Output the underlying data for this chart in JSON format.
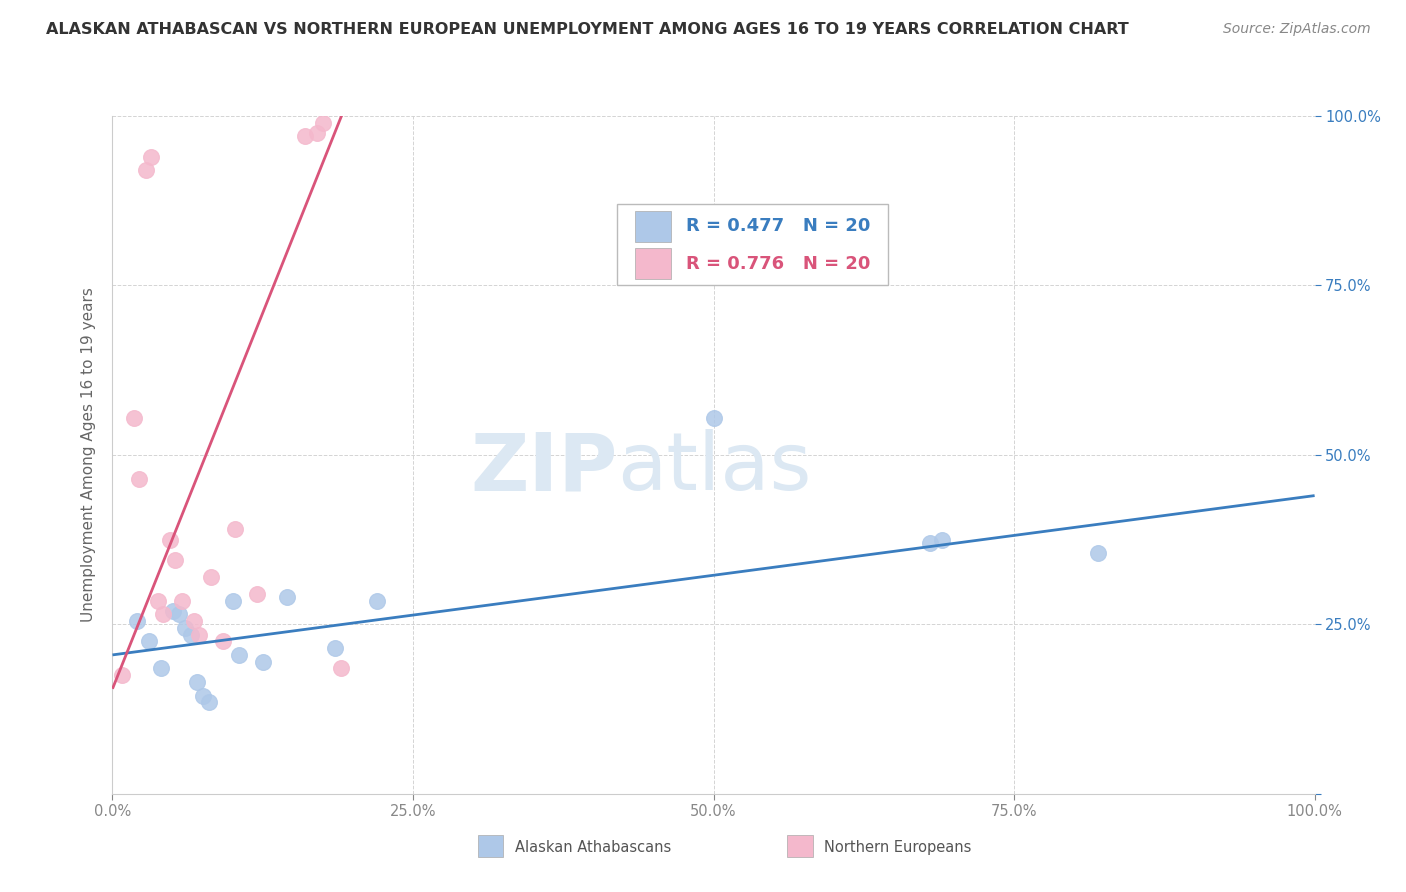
{
  "title": "ALASKAN ATHABASCAN VS NORTHERN EUROPEAN UNEMPLOYMENT AMONG AGES 16 TO 19 YEARS CORRELATION CHART",
  "source": "Source: ZipAtlas.com",
  "ylabel": "Unemployment Among Ages 16 to 19 years",
  "xlim": [
    0,
    1.0
  ],
  "ylim": [
    0,
    1.0
  ],
  "xticks": [
    0.0,
    0.25,
    0.5,
    0.75,
    1.0
  ],
  "yticks": [
    0.0,
    0.25,
    0.5,
    0.75,
    1.0
  ],
  "xticklabels": [
    "0.0%",
    "25.0%",
    "50.0%",
    "75.0%",
    "100.0%"
  ],
  "yticklabels": [
    "",
    "25.0%",
    "50.0%",
    "75.0%",
    "100.0%"
  ],
  "blue_label": "Alaskan Athabascans",
  "pink_label": "Northern Europeans",
  "blue_R": "R = 0.477",
  "blue_N": "N = 20",
  "pink_R": "R = 0.776",
  "pink_N": "N = 20",
  "blue_color": "#aec8e8",
  "pink_color": "#f4b8cc",
  "blue_line_color": "#3a7dbf",
  "pink_line_color": "#d9547a",
  "background_color": "#ffffff",
  "blue_x": [
    0.02,
    0.03,
    0.04,
    0.05,
    0.055,
    0.06,
    0.065,
    0.07,
    0.075,
    0.08,
    0.1,
    0.105,
    0.125,
    0.145,
    0.185,
    0.22,
    0.5,
    0.68,
    0.69,
    0.82
  ],
  "blue_y": [
    0.255,
    0.225,
    0.185,
    0.27,
    0.265,
    0.245,
    0.235,
    0.165,
    0.145,
    0.135,
    0.285,
    0.205,
    0.195,
    0.29,
    0.215,
    0.285,
    0.555,
    0.37,
    0.375,
    0.355
  ],
  "pink_x": [
    0.008,
    0.018,
    0.022,
    0.028,
    0.032,
    0.038,
    0.042,
    0.048,
    0.052,
    0.058,
    0.068,
    0.072,
    0.082,
    0.092,
    0.102,
    0.12,
    0.16,
    0.17,
    0.175,
    0.19
  ],
  "pink_y": [
    0.175,
    0.555,
    0.465,
    0.92,
    0.94,
    0.285,
    0.265,
    0.375,
    0.345,
    0.285,
    0.255,
    0.235,
    0.32,
    0.225,
    0.39,
    0.295,
    0.97,
    0.975,
    0.99,
    0.185
  ],
  "blue_trend_x": [
    0.0,
    1.0
  ],
  "blue_trend_y": [
    0.205,
    0.44
  ],
  "pink_trend_x": [
    0.0,
    0.195
  ],
  "pink_trend_y": [
    0.155,
    1.02
  ],
  "grid_color": "#d0d0d0",
  "title_fontsize": 11.5,
  "source_fontsize": 10,
  "tick_fontsize": 10.5,
  "label_fontsize": 11,
  "legend_fontsize": 13
}
